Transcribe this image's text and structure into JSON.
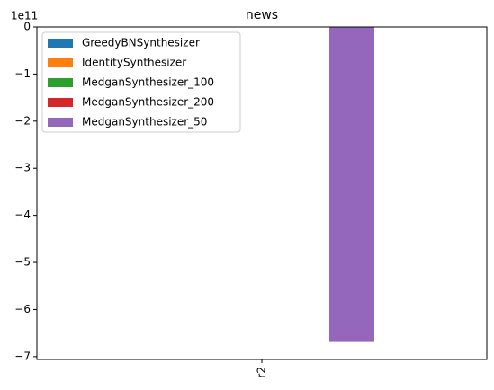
{
  "chart_data": {
    "type": "bar",
    "title": "news",
    "categories": [
      "r2"
    ],
    "series": [
      {
        "name": "GreedyBNSynthesizer",
        "color": "#1f77b4",
        "values": [
          0
        ]
      },
      {
        "name": "IdentitySynthesizer",
        "color": "#ff7f0e",
        "values": [
          0
        ]
      },
      {
        "name": "MedganSynthesizer_100",
        "color": "#2ca02c",
        "values": [
          0
        ]
      },
      {
        "name": "MedganSynthesizer_200",
        "color": "#d62728",
        "values": [
          0
        ]
      },
      {
        "name": "MedganSynthesizer_50",
        "color": "#9467bd",
        "values": [
          -6.69
        ]
      }
    ],
    "y_offset_label": "1e11",
    "ylim": [
      -7.06,
      0
    ],
    "yticks": [
      0,
      {
        "value": -1,
        "label": "−1"
      },
      {
        "value": -2,
        "label": "−2"
      },
      {
        "value": -3,
        "label": "−3"
      },
      {
        "value": -4,
        "label": "−4"
      },
      {
        "value": -5,
        "label": "−5"
      },
      {
        "value": -6,
        "label": "−6"
      },
      {
        "value": -7,
        "label": "−7"
      }
    ],
    "legend": "upper left"
  }
}
